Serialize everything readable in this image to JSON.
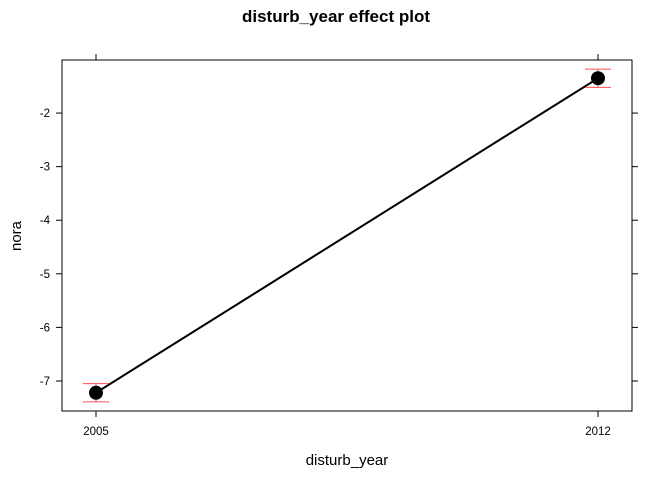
{
  "chart_data": {
    "type": "line",
    "title": "disturb_year effect plot",
    "xlabel": "disturb_year",
    "ylabel": "nora",
    "categories": [
      "2005",
      "2012"
    ],
    "y_ticks": [
      "-2",
      "-3",
      "-4",
      "-5",
      "-6",
      "-7"
    ],
    "ylim": [
      -7.56,
      -1.01
    ],
    "series": [
      {
        "values": [
          -7.22,
          -1.35
        ],
        "lower": [
          -7.39,
          -1.52
        ],
        "upper": [
          -7.05,
          -1.18
        ]
      }
    ],
    "grid": false,
    "colors": {
      "line": "#000000",
      "point": "#000000",
      "error_bar": "#ff4d4d"
    }
  }
}
